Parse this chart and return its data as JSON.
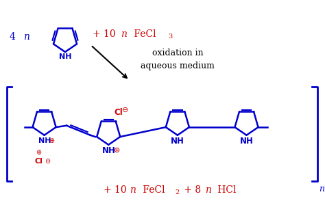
{
  "bg_color": "#ffffff",
  "blue": "#0000CD",
  "red": "#CC0000",
  "black": "#000000",
  "figsize": [
    4.74,
    3.16
  ],
  "dpi": 100,
  "reactant_label": "4 n",
  "reagent_text1": "+ 10 n FeCl",
  "reagent_sub1": "3",
  "arrow_text1": "oxidation in",
  "arrow_text2": "aqueous medium",
  "product_bottom": "+ 10 n FeCl",
  "product_sub": "2",
  "product_bottom2": " + 8 n HCl",
  "bracket_n": "n"
}
